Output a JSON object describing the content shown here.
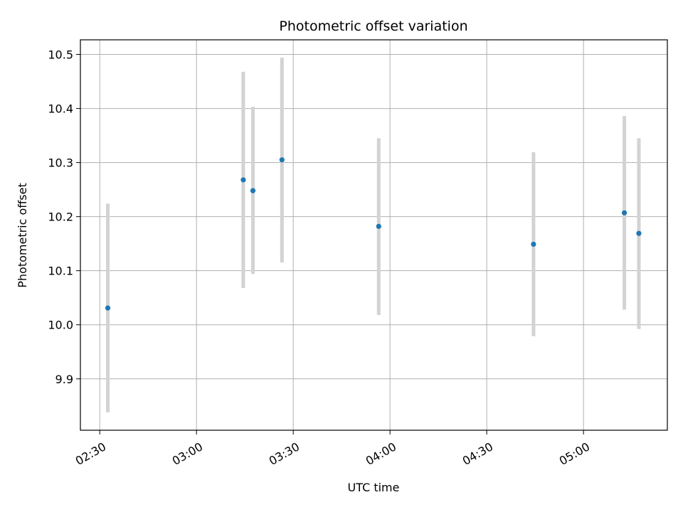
{
  "chart_data": {
    "type": "scatter",
    "title": "Photometric offset variation",
    "xlabel": "UTC time",
    "ylabel": "Photometric offset",
    "x_axis": {
      "type": "time",
      "range": [
        "02:24",
        "05:26"
      ],
      "ticks": [
        "02:30",
        "03:00",
        "03:30",
        "04:00",
        "04:30",
        "05:00"
      ]
    },
    "y_axis": {
      "range": [
        9.805,
        10.527
      ],
      "ticks": [
        "9.9",
        "10.0",
        "10.1",
        "10.2",
        "10.3",
        "10.4",
        "10.5"
      ]
    },
    "grid": true,
    "legend": "none",
    "colors": {
      "point": "#1f77b4",
      "errorbar": "#d3d3d3",
      "grid": "#b0b0b0"
    },
    "series": [
      {
        "points": [
          {
            "x": "02:32:30",
            "y": 10.031,
            "ymin": 9.838,
            "ymax": 10.224
          },
          {
            "x": "03:14:30",
            "y": 10.268,
            "ymin": 10.068,
            "ymax": 10.468
          },
          {
            "x": "03:17:30",
            "y": 10.248,
            "ymin": 10.094,
            "ymax": 10.403
          },
          {
            "x": "03:26:30",
            "y": 10.305,
            "ymin": 10.115,
            "ymax": 10.494
          },
          {
            "x": "03:56:30",
            "y": 10.182,
            "ymin": 10.018,
            "ymax": 10.345
          },
          {
            "x": "04:44:30",
            "y": 10.149,
            "ymin": 9.979,
            "ymax": 10.319
          },
          {
            "x": "05:12:40",
            "y": 10.207,
            "ymin": 10.028,
            "ymax": 10.386
          },
          {
            "x": "05:17:10",
            "y": 10.169,
            "ymin": 9.992,
            "ymax": 10.345
          }
        ]
      }
    ]
  }
}
